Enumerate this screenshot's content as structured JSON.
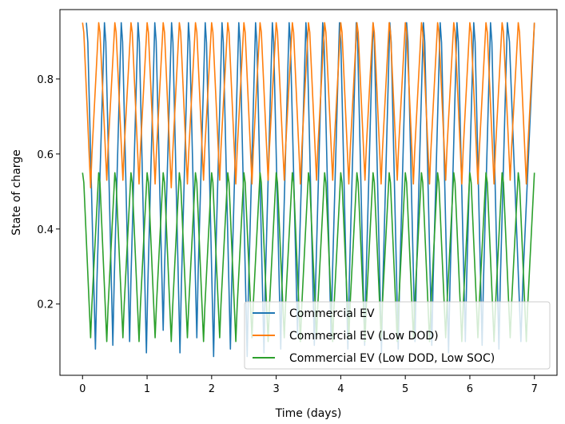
{
  "chart_data": {
    "type": "line",
    "xlabel": "Time (days)",
    "ylabel": "State of charge",
    "xlim": [
      -0.35,
      7.35
    ],
    "ylim": [
      0.01,
      0.985
    ],
    "xticks": [
      0,
      1,
      2,
      3,
      4,
      5,
      6,
      7
    ],
    "yticks": [
      0.2,
      0.4,
      0.6,
      0.8
    ],
    "grid": false,
    "legend_position": "lower-right",
    "series": [
      {
        "name": "Commercial EV",
        "color": "#1f77b4",
        "cycle_starts": [
          0.06,
          0.34,
          0.6,
          0.86,
          1.12,
          1.38,
          1.64,
          1.9,
          2.16,
          2.42,
          2.68,
          2.94,
          3.2,
          3.46,
          3.72,
          3.98,
          4.24,
          4.5,
          4.76,
          5.02,
          5.28,
          5.54,
          5.8,
          6.06,
          6.32,
          6.58
        ],
        "minima": [
          0.08,
          0.09,
          0.1,
          0.07,
          0.13,
          0.07,
          0.11,
          0.06,
          0.08,
          0.06,
          0.07,
          0.08,
          0.12,
          0.09,
          0.11,
          0.08,
          0.09,
          0.07,
          0.08,
          0.1,
          0.09,
          0.07,
          0.1,
          0.09,
          0.08,
          0.1
        ],
        "maxima": [
          0.95,
          0.95,
          0.95,
          0.95,
          0.95,
          0.95,
          0.95,
          0.95,
          0.95,
          0.95,
          0.95,
          0.95,
          0.95,
          0.95,
          0.95,
          0.95,
          0.95,
          0.95,
          0.95,
          0.95,
          0.95,
          0.95,
          0.95,
          0.95,
          0.95,
          0.95
        ]
      },
      {
        "name": "Commercial EV (Low DOD)",
        "color": "#ff7f0e",
        "cycle_starts": [
          0.0,
          0.25,
          0.5,
          0.75,
          1.0,
          1.25,
          1.5,
          1.75,
          2.0,
          2.25,
          2.5,
          2.75,
          3.0,
          3.25,
          3.5,
          3.75,
          4.0,
          4.25,
          4.5,
          4.75,
          5.0,
          5.25,
          5.5,
          5.75,
          6.0,
          6.25,
          6.5,
          6.75
        ],
        "minima": [
          0.51,
          0.53,
          0.53,
          0.52,
          0.52,
          0.51,
          0.52,
          0.53,
          0.53,
          0.52,
          0.52,
          0.53,
          0.53,
          0.52,
          0.53,
          0.53,
          0.52,
          0.53,
          0.52,
          0.53,
          0.52,
          0.52,
          0.53,
          0.52,
          0.52,
          0.52,
          0.53,
          0.52
        ],
        "maxima": [
          0.95,
          0.95,
          0.95,
          0.95,
          0.95,
          0.95,
          0.95,
          0.95,
          0.95,
          0.95,
          0.95,
          0.95,
          0.95,
          0.95,
          0.95,
          0.95,
          0.95,
          0.95,
          0.95,
          0.95,
          0.95,
          0.95,
          0.95,
          0.95,
          0.95,
          0.95,
          0.95,
          0.95
        ]
      },
      {
        "name": "Commercial EV (Low DOD, Low SOC)",
        "color": "#2ca02c",
        "cycle_starts": [
          0.0,
          0.25,
          0.5,
          0.75,
          1.0,
          1.25,
          1.5,
          1.75,
          2.0,
          2.25,
          2.5,
          2.75,
          3.0,
          3.25,
          3.5,
          3.75,
          4.0,
          4.25,
          4.5,
          4.75,
          5.0,
          5.25,
          5.5,
          5.75,
          6.0,
          6.25,
          6.5,
          6.75
        ],
        "minima": [
          0.11,
          0.1,
          0.11,
          0.1,
          0.11,
          0.1,
          0.11,
          0.1,
          0.11,
          0.1,
          0.11,
          0.1,
          0.11,
          0.1,
          0.11,
          0.1,
          0.11,
          0.1,
          0.11,
          0.1,
          0.11,
          0.1,
          0.11,
          0.1,
          0.11,
          0.1,
          0.11,
          0.1
        ],
        "maxima": [
          0.55,
          0.55,
          0.55,
          0.55,
          0.55,
          0.55,
          0.55,
          0.55,
          0.55,
          0.55,
          0.55,
          0.55,
          0.55,
          0.55,
          0.55,
          0.55,
          0.55,
          0.55,
          0.55,
          0.55,
          0.55,
          0.55,
          0.55,
          0.55,
          0.55,
          0.55,
          0.55,
          0.55
        ]
      }
    ]
  }
}
